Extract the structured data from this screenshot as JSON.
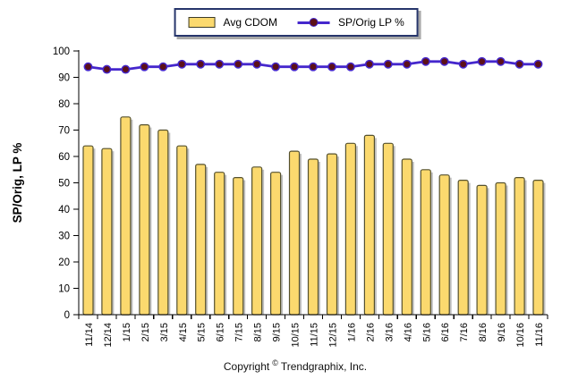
{
  "legend": {
    "bar_label": "Avg CDOM",
    "line_label": "SP/Orig LP %"
  },
  "footer": {
    "text_before": "Copyright",
    "symbol": "©",
    "text_after": "Trendgraphix, Inc."
  },
  "colors": {
    "bar_fill": "#fbd96e",
    "bar_border": "#55512f",
    "bar_shadow": "#b5b5b5",
    "line": "#4527cd",
    "marker_fill": "#5c1019",
    "axis": "#000000",
    "legend_border": "#26356b"
  },
  "chart_data": {
    "type": "bar",
    "title": "",
    "xlabel": "",
    "ylabel": "SP/Orig, LP %",
    "ylim": [
      0,
      100
    ],
    "ytick_step": 10,
    "grid": false,
    "legend_position": "top-center",
    "categories": [
      "11/14",
      "12/14",
      "1/15",
      "2/15",
      "3/15",
      "4/15",
      "5/15",
      "6/15",
      "7/15",
      "8/15",
      "9/15",
      "10/15",
      "11/15",
      "12/15",
      "1/16",
      "2/16",
      "3/16",
      "4/16",
      "5/16",
      "6/16",
      "7/16",
      "8/16",
      "9/16",
      "10/16",
      "11/16"
    ],
    "series": [
      {
        "name": "Avg CDOM",
        "type": "bar",
        "values": [
          64,
          63,
          75,
          72,
          70,
          64,
          57,
          54,
          52,
          56,
          54,
          62,
          59,
          61,
          65,
          68,
          65,
          59,
          55,
          53,
          51,
          49,
          50,
          52,
          51
        ]
      },
      {
        "name": "SP/Orig LP %",
        "type": "line",
        "values": [
          94,
          93,
          93,
          94,
          94,
          95,
          95,
          95,
          95,
          95,
          94,
          94,
          94,
          94,
          94,
          95,
          95,
          95,
          96,
          96,
          95,
          96,
          96,
          95,
          95
        ]
      }
    ]
  }
}
